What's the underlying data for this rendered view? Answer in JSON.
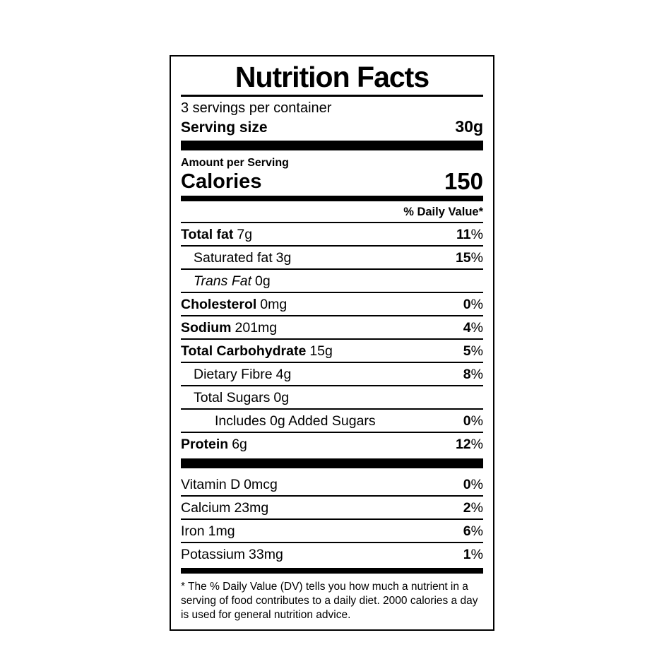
{
  "colors": {
    "text": "#000000",
    "background": "#ffffff"
  },
  "label": {
    "title": "Nutrition Facts",
    "servings_per_container": "3 servings per container",
    "serving_size_label": "Serving size",
    "serving_size_value": "30g",
    "amount_per_serving": "Amount per Serving",
    "calories_label": "Calories",
    "calories_value": "150",
    "daily_value_header": "% Daily Value*",
    "percent_symbol": "%",
    "nutrients": [
      {
        "name": "Total fat",
        "amount": "7g",
        "dv": "11"
      },
      {
        "name": "Saturated fat",
        "amount": "3g",
        "dv": "15"
      },
      {
        "name": "Trans Fat",
        "amount": "0g",
        "dv": ""
      },
      {
        "name": "Cholesterol",
        "amount": "0mg",
        "dv": "0"
      },
      {
        "name": "Sodium",
        "amount": "201mg",
        "dv": "4"
      },
      {
        "name": "Total Carbohydrate",
        "amount": "15g",
        "dv": "5"
      },
      {
        "name": "Dietary Fibre",
        "amount": "4g",
        "dv": "8"
      },
      {
        "name": "Total Sugars",
        "amount": "0g",
        "dv": ""
      },
      {
        "name": "Includes 0g Added Sugars",
        "amount": "",
        "dv": "0"
      },
      {
        "name": "Protein",
        "amount": "6g",
        "dv": "12"
      }
    ],
    "vitamins": [
      {
        "name": "Vitamin D",
        "amount": "0mcg",
        "dv": "0"
      },
      {
        "name": "Calcium",
        "amount": "23mg",
        "dv": "2"
      },
      {
        "name": "Iron",
        "amount": "1mg",
        "dv": "6"
      },
      {
        "name": "Potassium",
        "amount": "33mg",
        "dv": "1"
      }
    ],
    "footnote": "* The % Daily Value (DV) tells you how much a nutrient in a serving of food contributes to a daily diet. 2000 calories a day is used for general nutrition advice."
  }
}
